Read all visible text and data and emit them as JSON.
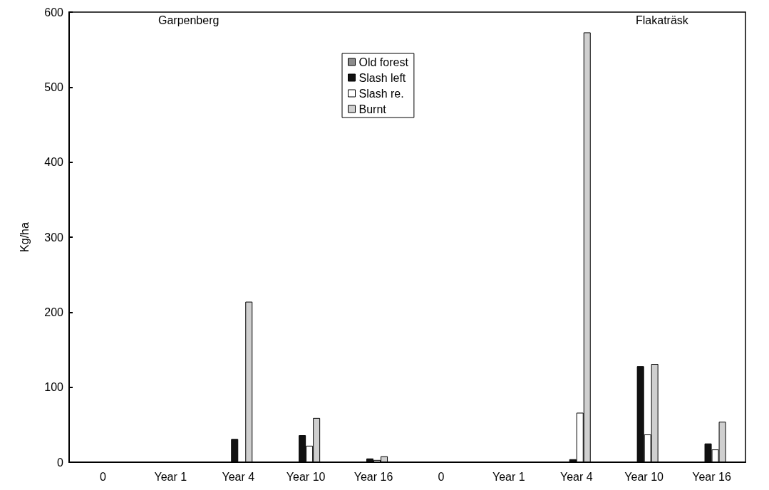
{
  "chart_data": {
    "type": "bar",
    "ylabel": "Kg/ha",
    "categories": [
      "0",
      "Year 1",
      "Year 4",
      "Year 10",
      "Year 16",
      "0",
      "Year 1",
      "Year 4",
      "Year 10",
      "Year 16"
    ],
    "series": [
      {
        "name": "Old forest",
        "color": "#8c8c8c",
        "values": [
          null,
          null,
          null,
          null,
          null,
          null,
          null,
          null,
          null,
          null
        ]
      },
      {
        "name": "Slash left",
        "color": "#111111",
        "values": [
          null,
          null,
          31,
          36,
          5,
          null,
          null,
          4,
          128,
          25
        ]
      },
      {
        "name": "Slash re.",
        "color": "#ffffff",
        "values": [
          null,
          null,
          null,
          22,
          3,
          null,
          null,
          66,
          37,
          17
        ]
      },
      {
        "name": "Burnt",
        "color": "#cfcfcf",
        "values": [
          null,
          null,
          214,
          59,
          8,
          null,
          null,
          573,
          131,
          54
        ]
      }
    ],
    "ylim": [
      0,
      600
    ],
    "yticks": [
      0,
      100,
      200,
      300,
      400,
      500,
      600
    ],
    "grid": false,
    "legend": "top",
    "annotations": [
      "Garpenberg",
      "Flakaträsk"
    ]
  }
}
